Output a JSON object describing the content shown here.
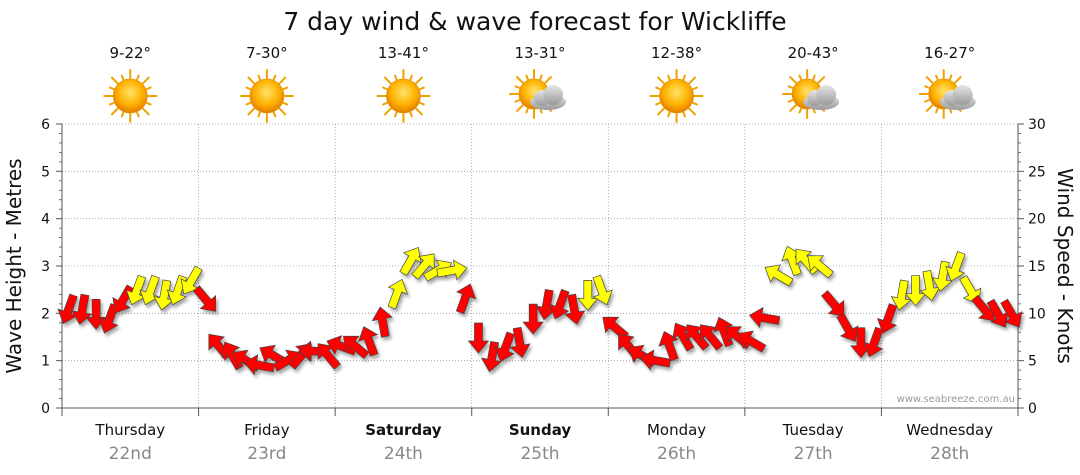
{
  "chart_data": {
    "type": "line",
    "title": "7 day wind & wave forecast for Wickliffe",
    "ylabel": "Wave Height - Metres",
    "y2label": "Wind Speed - Knots",
    "ylim": [
      0,
      6
    ],
    "y2lim": [
      0,
      30
    ],
    "y_ticks": [
      "0",
      "1",
      "2",
      "3",
      "4",
      "5",
      "6"
    ],
    "y2_ticks": [
      "0",
      "5",
      "10",
      "15",
      "20",
      "25",
      "30"
    ],
    "grid": true,
    "credit": "www.seabreeze.com.au",
    "days": [
      {
        "day": "Thursday",
        "date": "22nd",
        "temps": "9-22°",
        "weather": "sunny",
        "bold": false
      },
      {
        "day": "Friday",
        "date": "23rd",
        "temps": "7-30°",
        "weather": "sunny",
        "bold": false
      },
      {
        "day": "Saturday",
        "date": "24th",
        "temps": "13-41°",
        "weather": "sunny",
        "bold": true
      },
      {
        "day": "Sunday",
        "date": "25th",
        "temps": "13-31°",
        "weather": "partly-cloudy",
        "bold": true
      },
      {
        "day": "Monday",
        "date": "26th",
        "temps": "12-38°",
        "weather": "sunny",
        "bold": false
      },
      {
        "day": "Tuesday",
        "date": "27th",
        "temps": "20-43°",
        "weather": "partly-cloudy",
        "bold": false
      },
      {
        "day": "Wednesday",
        "date": "28th",
        "temps": "16-27°",
        "weather": "partly-cloudy",
        "bold": false
      }
    ],
    "series": [
      {
        "name": "Wind Speed (knots)",
        "color_strong": "#ff0000",
        "color_light": "#ffff00",
        "x_days": [
          0.0,
          0.1,
          0.2,
          0.3,
          0.4,
          0.5,
          0.6,
          0.7,
          0.8,
          0.9,
          1.0,
          1.1,
          1.2,
          1.3,
          1.4,
          1.5,
          1.6,
          1.7,
          1.8,
          1.9,
          2.0,
          2.1,
          2.2,
          2.3,
          2.4,
          2.5,
          2.6,
          2.7,
          2.8,
          2.9,
          3.0,
          3.1,
          3.2,
          3.3,
          3.4,
          3.5,
          3.6,
          3.7,
          3.8,
          3.9,
          4.0,
          4.1,
          4.2,
          4.3,
          4.4,
          4.5,
          4.6,
          4.7,
          4.8,
          4.9,
          5.0,
          5.1,
          5.2,
          5.3,
          5.4,
          5.5,
          5.6,
          5.7,
          5.8,
          5.9,
          6.0,
          6.1,
          6.2,
          6.3,
          6.4,
          6.5,
          6.6,
          6.7,
          6.8,
          6.9
        ],
        "knots": [
          10.5,
          10.5,
          10.0,
          9.5,
          11.5,
          12.5,
          12.5,
          12.0,
          12.5,
          13.5,
          11.5,
          6.5,
          5.5,
          5.0,
          4.5,
          5.5,
          5.0,
          5.5,
          6.0,
          5.5,
          6.5,
          6.5,
          7.0,
          9.0,
          12.0,
          15.5,
          15.0,
          14.5,
          14.5,
          11.5,
          7.5,
          5.5,
          6.5,
          7.0,
          9.5,
          11.0,
          11.0,
          10.5,
          12.0,
          12.5,
          8.5,
          6.5,
          5.5,
          5.0,
          6.5,
          7.5,
          7.5,
          7.5,
          8.0,
          7.5,
          7.0,
          9.5,
          14.0,
          15.5,
          15.5,
          15.0,
          11.0,
          8.5,
          7.0,
          7.0,
          9.5,
          12.0,
          12.5,
          13.0,
          14.0,
          15.0,
          12.5,
          10.5,
          10.0,
          10.0
        ],
        "direction_deg": [
          200,
          190,
          180,
          200,
          210,
          200,
          200,
          190,
          200,
          210,
          140,
          320,
          330,
          300,
          280,
          300,
          60,
          40,
          270,
          320,
          290,
          310,
          340,
          350,
          20,
          30,
          40,
          60,
          80,
          20,
          180,
          190,
          200,
          170,
          180,
          190,
          200,
          170,
          180,
          160,
          310,
          320,
          300,
          280,
          340,
          330,
          320,
          320,
          340,
          310,
          300,
          280,
          300,
          340,
          320,
          310,
          140,
          150,
          180,
          200,
          200,
          190,
          180,
          170,
          190,
          200,
          150,
          140,
          150,
          150
        ]
      },
      {
        "name": "Wave Height (m)",
        "color": "#9acd32",
        "values": []
      }
    ]
  }
}
